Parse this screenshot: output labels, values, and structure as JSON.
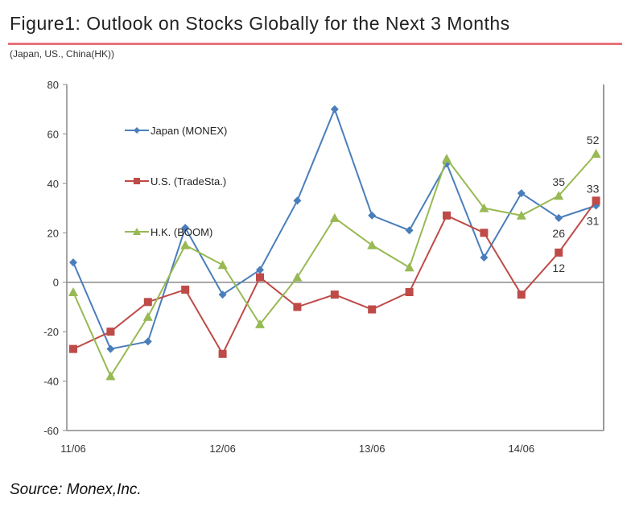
{
  "title": "Figure1: Outlook on Stocks Globally for the Next 3 Months",
  "subtitle": "(Japan, US., China(HK))",
  "source": "Source: Monex,Inc.",
  "chart_data": {
    "type": "line",
    "title": "Figure1: Outlook on Stocks Globally for the Next 3 Months",
    "xlabel": "",
    "ylabel": "",
    "ylim": [
      -60,
      80
    ],
    "yticks": [
      80,
      60,
      40,
      20,
      0,
      -20,
      -40,
      -60
    ],
    "xtick_labels": [
      "11/06",
      "12/06",
      "13/06",
      "14/06"
    ],
    "xtick_index": [
      0,
      4,
      8,
      12
    ],
    "x": [
      "11/06",
      "11/09",
      "11/12",
      "12/03",
      "12/06",
      "12/09",
      "12/12",
      "13/03",
      "13/06",
      "13/09",
      "13/12",
      "14/03",
      "14/06",
      "14/09",
      "14/12"
    ],
    "legend_position": "top-left",
    "series": [
      {
        "name": "Japan (MONEX)",
        "color": "#4a7ebb",
        "marker": "diamond",
        "values": [
          8,
          -27,
          -24,
          22,
          -5,
          5,
          33,
          70,
          27,
          21,
          48,
          10,
          36,
          26,
          31
        ],
        "labels": {
          "13": "26",
          "14": "31"
        }
      },
      {
        "name": "U.S. (TradeSta.)",
        "color": "#be4b48",
        "marker": "square",
        "values": [
          -27,
          -20,
          -8,
          -3,
          -29,
          2,
          -10,
          -5,
          -11,
          -4,
          27,
          20,
          -5,
          12,
          33
        ],
        "labels": {
          "13": "12",
          "14": "33"
        }
      },
      {
        "name": "H.K. (BOOM)",
        "color": "#98b954",
        "marker": "triangle",
        "values": [
          -4,
          -38,
          -14,
          15,
          7,
          -17,
          2,
          26,
          15,
          6,
          50,
          30,
          27,
          35,
          52
        ],
        "labels": {
          "13": "35",
          "14": "52"
        }
      }
    ]
  }
}
